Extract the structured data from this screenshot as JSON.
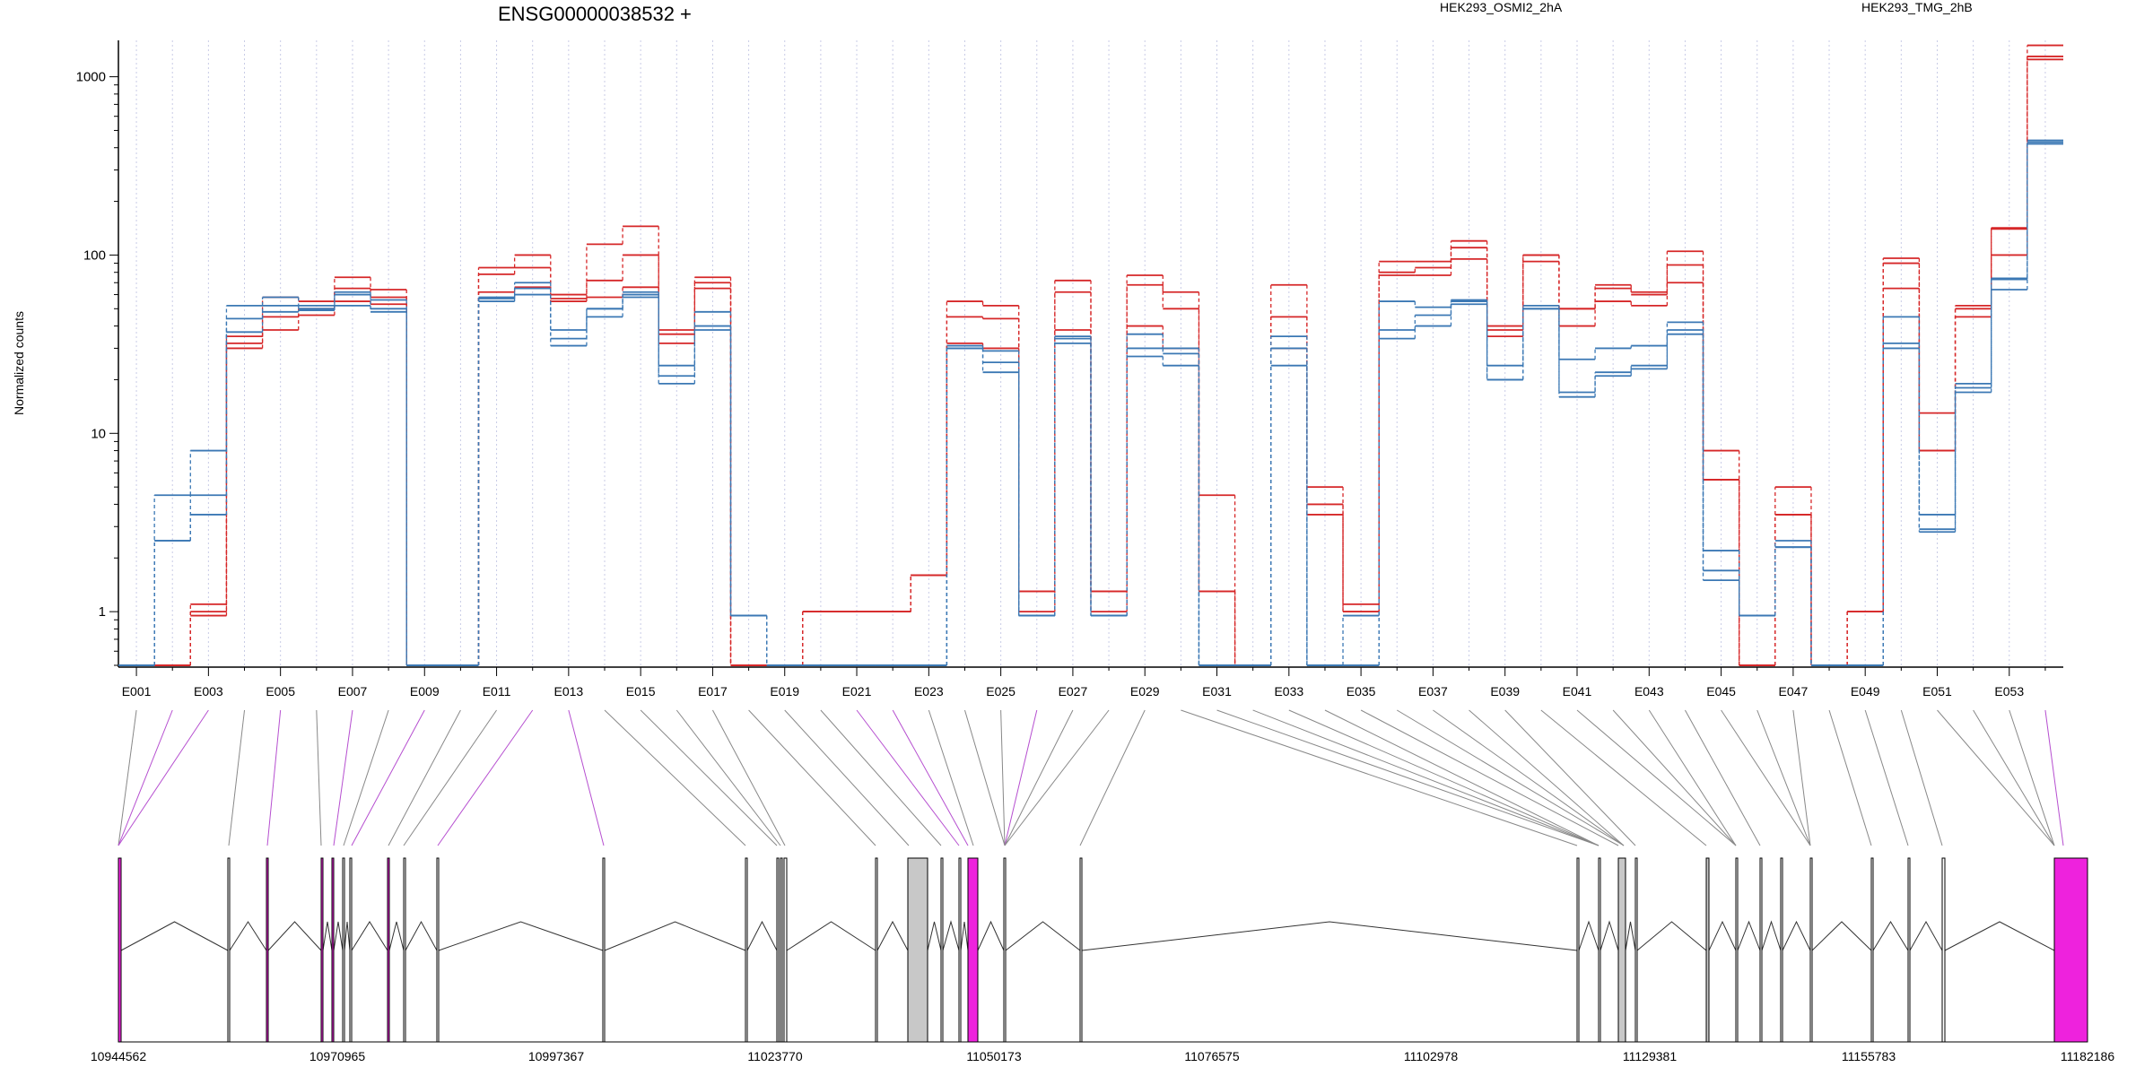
{
  "colors": {
    "series_a": "#d62728",
    "series_b": "#3b78b4",
    "exon_normal": "#ffffff",
    "exon_gray": "#c8c8c8",
    "exon_magenta": "#ee22dd",
    "connector_magenta": "#b64fd0",
    "connector_gray": "#888888",
    "grid": "#c8cbe6"
  },
  "chart_data": {
    "type": "line",
    "title": "ENSG00000038532 +",
    "ylabel": "Normalized counts",
    "xlabel": "",
    "y_scale": "log",
    "ylim": [
      0.5,
      1600
    ],
    "y_ticks": [
      1,
      10,
      100,
      1000
    ],
    "y_tick_labels": [
      "1",
      "10",
      "100",
      "1000"
    ],
    "grid": "vertical dotted, one per exon",
    "legend_placement": "top",
    "legend": [
      "HEK293_OSMI2_2hA",
      "HEK293_TMG_2hB"
    ],
    "categories": [
      "E001",
      "E002",
      "E003",
      "E004",
      "E005",
      "E006",
      "E007",
      "E008",
      "E009",
      "E010",
      "E011",
      "E012",
      "E013",
      "E014",
      "E015",
      "E016",
      "E017",
      "E018",
      "E019",
      "E020",
      "E021",
      "E022",
      "E023",
      "E024",
      "E025",
      "E026",
      "E027",
      "E028",
      "E029",
      "E030",
      "E031",
      "E032",
      "E033",
      "E034",
      "E035",
      "E036",
      "E037",
      "E038",
      "E039",
      "E040",
      "E041",
      "E042",
      "E043",
      "E044",
      "E045",
      "E046",
      "E047",
      "E048",
      "E049",
      "E050",
      "E051",
      "E052",
      "E053",
      "E054"
    ],
    "category_tick_labels": [
      "E001",
      "E003",
      "E005",
      "E007",
      "E009",
      "E011",
      "E013",
      "E015",
      "E017",
      "E019",
      "E021",
      "E023",
      "E025",
      "E027",
      "E029",
      "E031",
      "E033",
      "E035",
      "E037",
      "E039",
      "E041",
      "E043",
      "E045",
      "E047",
      "E049",
      "E051",
      "E053"
    ],
    "series": [
      {
        "name": "HEK293_OSMI2_2hA",
        "group": "a",
        "values": [
          0.5,
          0.5,
          1.1,
          32,
          38,
          46,
          55,
          53,
          0.5,
          0.5,
          62,
          66,
          55,
          58,
          66,
          32,
          65,
          0.5,
          0.5,
          1,
          1,
          1,
          1.6,
          32,
          30,
          1.3,
          38,
          1.3,
          40,
          30,
          4.5,
          0.5,
          30,
          4,
          1.1,
          80,
          85,
          95,
          35,
          92,
          40,
          55,
          52,
          70,
          8,
          0.5,
          5,
          0.5,
          1,
          90,
          13,
          50,
          140,
          1500
        ]
      },
      {
        "name": "HEK293_OSMI2_2hA",
        "group": "a",
        "values": [
          0.5,
          0.5,
          1,
          35,
          45,
          50,
          65,
          58,
          0.5,
          0.5,
          78,
          85,
          57,
          72,
          100,
          38,
          70,
          0.5,
          0.5,
          1,
          1,
          1,
          1.6,
          45,
          44,
          1,
          62,
          1,
          68,
          50,
          1.3,
          0.5,
          45,
          5,
          1,
          77,
          77,
          110,
          38,
          100,
          50,
          65,
          60,
          88,
          5.5,
          0.5,
          3.5,
          0.5,
          1,
          65,
          8,
          45,
          100,
          1300
        ]
      },
      {
        "name": "HEK293_OSMI2_2hA",
        "group": "a",
        "values": [
          0.5,
          0.5,
          0.95,
          30,
          58,
          55,
          75,
          64,
          0.5,
          0.5,
          85,
          100,
          60,
          115,
          145,
          36,
          75,
          0.5,
          0.5,
          1,
          1,
          1,
          1.6,
          55,
          52,
          1.3,
          72,
          1.3,
          77,
          62,
          1.3,
          0.5,
          68,
          3.5,
          1,
          92,
          92,
          120,
          40,
          100,
          50,
          68,
          62,
          105,
          5.5,
          0.5,
          3.5,
          0.5,
          1,
          96,
          8,
          52,
          142,
          1250
        ]
      },
      {
        "name": "HEK293_TMG_2hB",
        "group": "b",
        "values": [
          0.5,
          2.5,
          3.5,
          37,
          48,
          49,
          52,
          48,
          0.5,
          0.5,
          57,
          60,
          31,
          50,
          58,
          24,
          40,
          0.95,
          0.5,
          0.5,
          0.5,
          0.5,
          0.5,
          31,
          29,
          0.95,
          35,
          0.95,
          36,
          30,
          0.5,
          0.5,
          30,
          0.5,
          0.5,
          38,
          46,
          55,
          24,
          50,
          26,
          30,
          31,
          42,
          1.7,
          0.95,
          2.5,
          0.5,
          0.5,
          32,
          3.5,
          19,
          73,
          430
        ]
      },
      {
        "name": "HEK293_TMG_2hB",
        "group": "b",
        "values": [
          0.5,
          4.5,
          8,
          52,
          58,
          52,
          62,
          56,
          0.5,
          0.5,
          58,
          70,
          38,
          50,
          60,
          21,
          48,
          0.95,
          0.5,
          0.5,
          0.5,
          0.5,
          0.5,
          30,
          25,
          0.95,
          32,
          0.95,
          30,
          28,
          0.5,
          0.5,
          35,
          0.5,
          0.5,
          55,
          51,
          56,
          20,
          52,
          17,
          22,
          23,
          38,
          2.2,
          0.95,
          2.3,
          0.5,
          0.5,
          45,
          2.8,
          18,
          74,
          440
        ]
      },
      {
        "name": "HEK293_TMG_2hB",
        "group": "b",
        "values": [
          0.5,
          2.5,
          4.5,
          44,
          52,
          50,
          60,
          50,
          0.5,
          0.5,
          55,
          65,
          34,
          45,
          62,
          19,
          38,
          0.95,
          0.5,
          0.5,
          0.5,
          0.5,
          0.5,
          30,
          22,
          0.95,
          34,
          0.95,
          27,
          24,
          0.5,
          0.5,
          24,
          0.5,
          0.95,
          34,
          40,
          53,
          20,
          50,
          16,
          21,
          24,
          36,
          1.5,
          0.95,
          2.3,
          0.5,
          0.5,
          30,
          2.9,
          17,
          64,
          420
        ]
      }
    ]
  },
  "gene_model": {
    "coordinate_labels": [
      "10944562",
      "10970965",
      "10997367",
      "11023770",
      "11050173",
      "11076575",
      "11102978",
      "11129381",
      "11155783",
      "11182186"
    ]
  }
}
